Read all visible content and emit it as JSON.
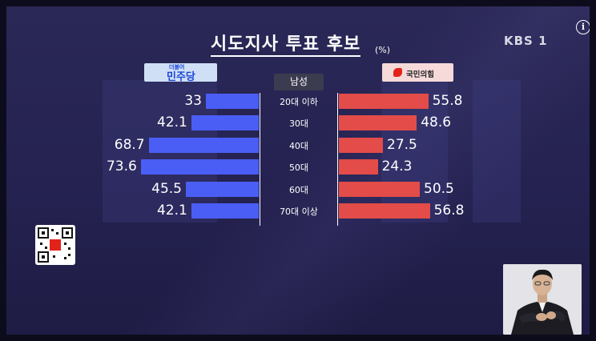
{
  "broadcast": {
    "channel_logo": "KBS 1",
    "info_glyph": "i"
  },
  "chart_data": {
    "type": "bar",
    "title": "시도지사 투표 후보",
    "unit": "(%)",
    "group_label": "남성",
    "categories": [
      "20대 이하",
      "30대",
      "40대",
      "50대",
      "60대",
      "70대 이상"
    ],
    "series": [
      {
        "name": "민주당",
        "tag": "더불어",
        "color": "#4a5ef5",
        "values": [
          33,
          42.1,
          68.7,
          73.6,
          45.5,
          42.1
        ],
        "labels": [
          "33",
          "42.1",
          "68.7",
          "73.6",
          "45.5",
          "42.1"
        ]
      },
      {
        "name": "국민의힘",
        "color": "#e34c48",
        "values": [
          55.8,
          48.6,
          27.5,
          24.3,
          50.5,
          56.8
        ],
        "labels": [
          "55.8",
          "48.6",
          "27.5",
          "24.3",
          "50.5",
          "56.8"
        ]
      }
    ]
  }
}
